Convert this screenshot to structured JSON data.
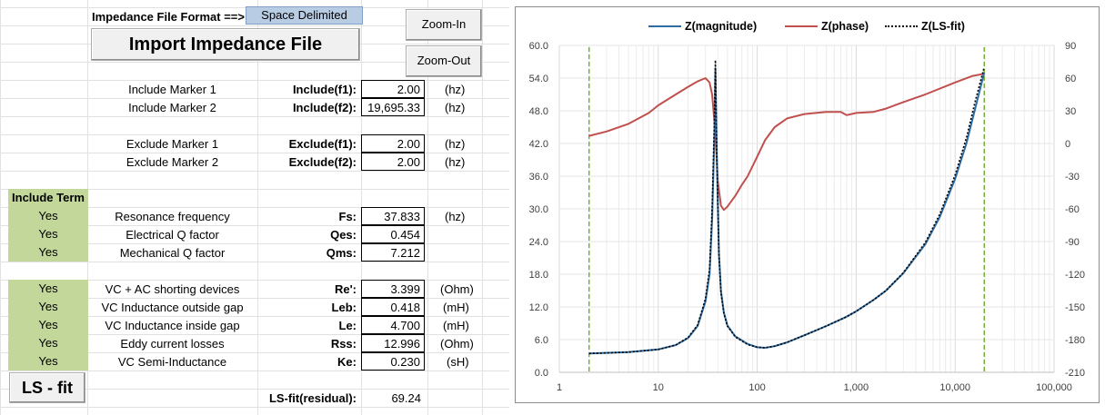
{
  "header": {
    "format_label": "Impedance File Format ==>",
    "format_value": "Space Delimited",
    "import_button": "Import Impedance File",
    "zoom_in": "Zoom-In",
    "zoom_out": "Zoom-Out"
  },
  "markers": [
    {
      "desc": "Include Marker 1",
      "param": "Include(f1):",
      "value": "2.00",
      "unit": "(hz)"
    },
    {
      "desc": "Include Marker 2",
      "param": "Include(f2):",
      "value": "19,695.33",
      "unit": "(hz)"
    },
    {
      "desc": "Exclude Marker 1",
      "param": "Exclude(f1):",
      "value": "2.00",
      "unit": "(hz)"
    },
    {
      "desc": "Exclude Marker 2",
      "param": "Exclude(f2):",
      "value": "2.00",
      "unit": "(hz)"
    }
  ],
  "include_term_header": "Include Term",
  "params": [
    {
      "include": "Yes",
      "desc": "Resonance frequency",
      "param": "Fs:",
      "value": "37.833",
      "unit": "(hz)"
    },
    {
      "include": "Yes",
      "desc": "Electrical Q factor",
      "param": "Qes:",
      "value": "0.454",
      "unit": ""
    },
    {
      "include": "Yes",
      "desc": "Mechanical Q factor",
      "param": "Qms:",
      "value": "7.212",
      "unit": ""
    },
    {
      "include": "Yes",
      "desc": "VC + AC shorting devices",
      "param": "Re':",
      "value": "3.399",
      "unit": "(Ohm)"
    },
    {
      "include": "Yes",
      "desc": "VC Inductance outside gap",
      "param": "Leb:",
      "value": "0.418",
      "unit": "(mH)"
    },
    {
      "include": "Yes",
      "desc": "VC Inductance inside gap",
      "param": "Le:",
      "value": "4.700",
      "unit": "(mH)"
    },
    {
      "include": "Yes",
      "desc": "Eddy current losses",
      "param": "Rss:",
      "value": "12.996",
      "unit": "(Ohm)"
    },
    {
      "include": "Yes",
      "desc": "VC Semi-Inductance",
      "param": "Ke:",
      "value": "0.230",
      "unit": "(sH)"
    }
  ],
  "ls_fit_button": "LS - fit",
  "residual_label": "LS-fit(residual):",
  "residual_value": "69.24",
  "chart_data": {
    "type": "line",
    "x_scale": "log",
    "xlim": [
      1,
      100000
    ],
    "x_ticks": [
      "1",
      "10",
      "100",
      "1,000",
      "10,000",
      "100,000"
    ],
    "ylim_left": [
      0,
      60
    ],
    "y_ticks_left": [
      "60.0",
      "54.0",
      "48.0",
      "42.0",
      "36.0",
      "30.0",
      "24.0",
      "18.0",
      "12.0",
      "6.0",
      "0.0"
    ],
    "ylim_right": [
      -210,
      90
    ],
    "y_ticks_right": [
      "90",
      "60",
      "30",
      "0",
      "-30",
      "-60",
      "-90",
      "-120",
      "-150",
      "-180",
      "-210"
    ],
    "legend_position": "top",
    "marker_freqs": [
      2,
      19695.33
    ],
    "colors": {
      "magnitude": "#2e6da4",
      "phase": "#c0504d",
      "fit": "#000000",
      "marker": "#77b133"
    },
    "series": [
      {
        "name": "Z(magnitude)",
        "axis": "left",
        "x": [
          2,
          5,
          10,
          15,
          20,
          25,
          30,
          33,
          35,
          37,
          37.8,
          39,
          41,
          43,
          46,
          50,
          60,
          80,
          100,
          120,
          150,
          200,
          300,
          500,
          800,
          1000,
          1500,
          2000,
          3000,
          5000,
          7000,
          10000,
          13000,
          16000,
          19695
        ],
        "y": [
          3.45,
          3.7,
          4.2,
          5.0,
          6.3,
          8.5,
          13.0,
          18.0,
          28.0,
          44.0,
          55.8,
          40.0,
          22.0,
          15.0,
          11.0,
          8.6,
          6.6,
          5.2,
          4.6,
          4.5,
          4.8,
          5.5,
          6.8,
          8.5,
          10.2,
          11.2,
          13.3,
          15.0,
          18.2,
          23.5,
          28.5,
          35.5,
          42.0,
          48.5,
          55.0
        ]
      },
      {
        "name": "Z(phase)",
        "axis": "right",
        "x": [
          2,
          3,
          5,
          8,
          10,
          15,
          20,
          25,
          30,
          33,
          35,
          37.8,
          40,
          43,
          46,
          50,
          60,
          70,
          80,
          100,
          120,
          150,
          200,
          300,
          500,
          700,
          800,
          1000,
          1500,
          2000,
          3000,
          5000,
          10000,
          15000,
          19695
        ],
        "y": [
          7,
          11,
          18,
          28,
          35,
          45,
          52,
          57,
          60,
          56,
          45,
          10,
          -35,
          -57,
          -61,
          -58,
          -48,
          -38,
          -30,
          -12,
          3,
          15,
          23,
          27,
          29,
          29,
          26,
          28,
          29,
          32,
          38,
          45,
          56,
          62,
          64
        ]
      },
      {
        "name": "Z(LS-fit)",
        "axis": "left",
        "x": [
          2,
          5,
          10,
          15,
          20,
          25,
          30,
          33,
          35,
          37,
          37.8,
          39,
          41,
          43,
          46,
          50,
          60,
          80,
          100,
          120,
          150,
          200,
          300,
          500,
          800,
          1000,
          1500,
          2000,
          3000,
          5000,
          7000,
          10000,
          13000,
          16000,
          19695
        ],
        "y": [
          3.45,
          3.7,
          4.2,
          5.0,
          6.4,
          8.7,
          13.5,
          19.0,
          30.0,
          47.0,
          57.3,
          40.5,
          21.5,
          14.6,
          10.8,
          8.5,
          6.5,
          5.1,
          4.6,
          4.5,
          4.8,
          5.5,
          6.8,
          8.5,
          10.2,
          11.2,
          13.3,
          15.0,
          18.3,
          23.8,
          29.0,
          36.2,
          43.0,
          49.8,
          56.0
        ]
      }
    ]
  }
}
